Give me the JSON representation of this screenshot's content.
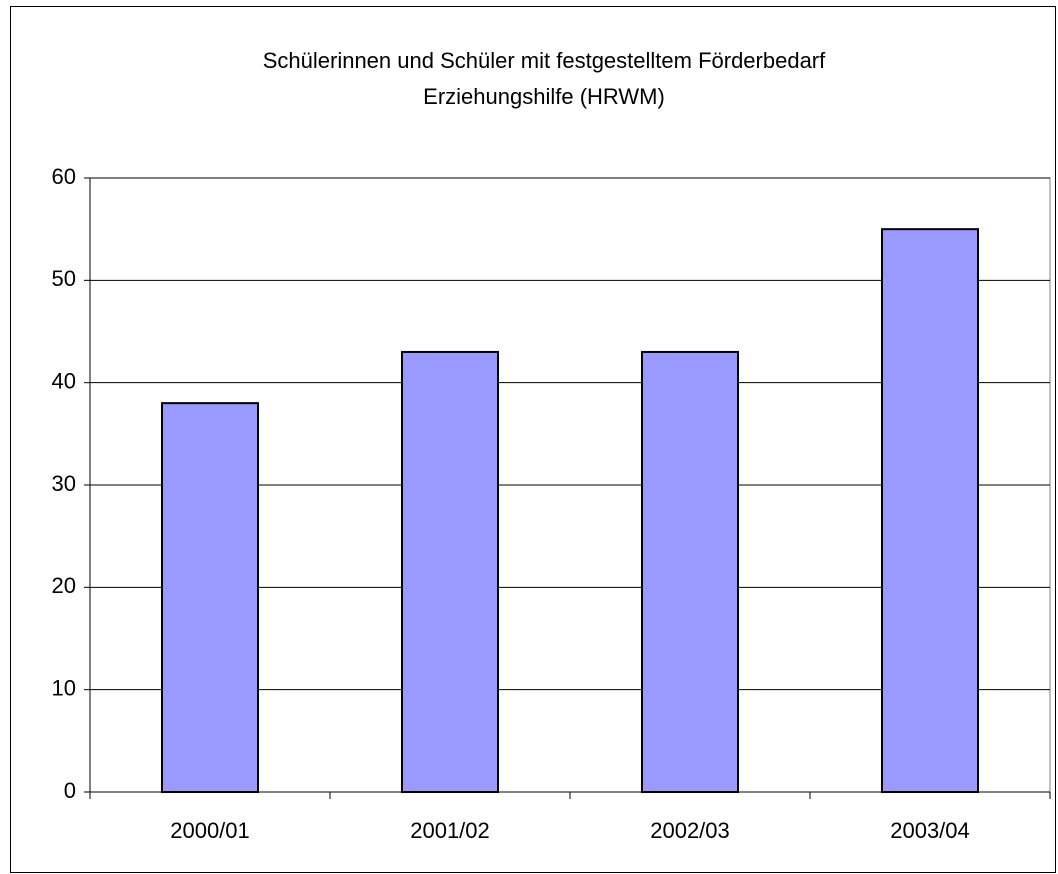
{
  "chart_data": {
    "type": "bar",
    "title": [
      "Schülerinnen und Schüler mit festgestelltem Förderbedarf",
      "Erziehungshilfe (HRWM)"
    ],
    "categories": [
      "2000/01",
      "2001/02",
      "2002/03",
      "2003/04"
    ],
    "values": [
      38,
      43,
      43,
      55
    ],
    "color": "#9999ff",
    "ylim": [
      0,
      60
    ],
    "yticks": [
      0,
      10,
      20,
      30,
      40,
      50,
      60
    ],
    "grid": true
  }
}
